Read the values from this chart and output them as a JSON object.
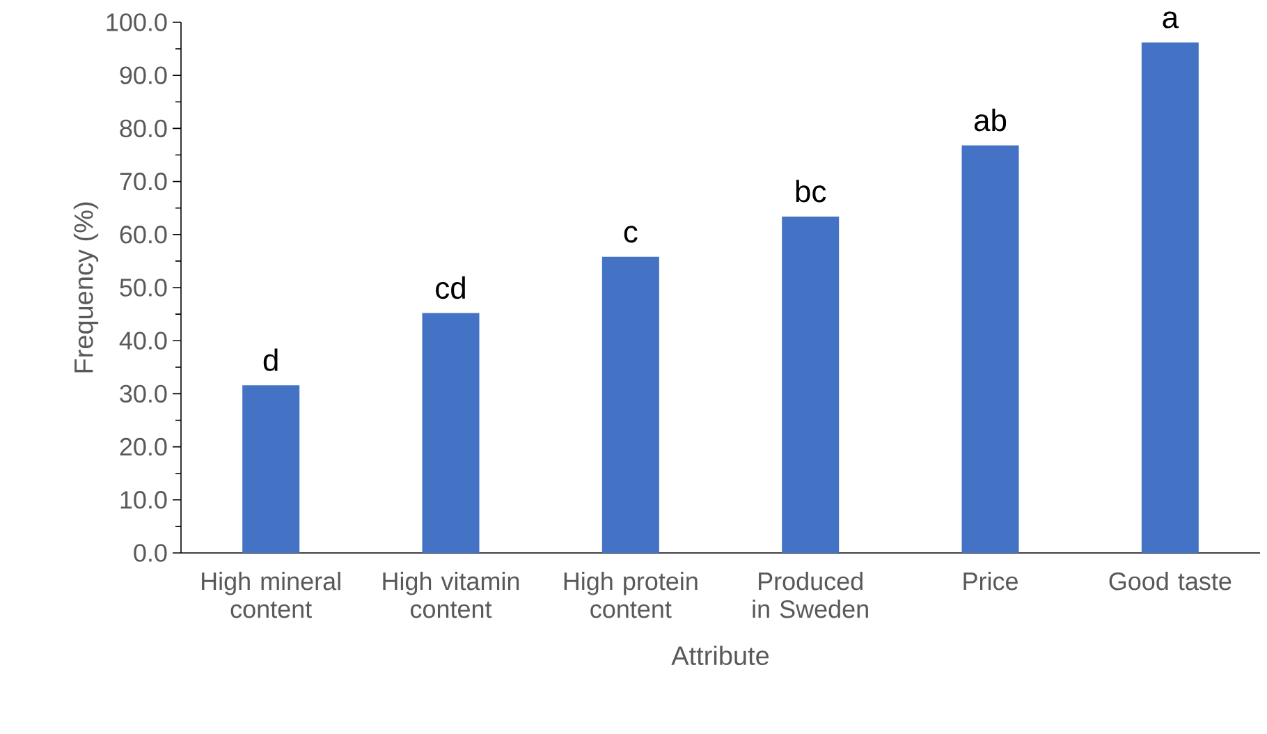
{
  "chart_data": {
    "type": "bar",
    "categories": [
      "High mineral content",
      "High vitamin content",
      "High protein content",
      "Produced in Sweden",
      "Price",
      "Good taste"
    ],
    "values": [
      31.6,
      45.2,
      55.8,
      63.4,
      76.8,
      96.2
    ],
    "color": "#4472c4",
    "xlabel": "Attribute",
    "ylabel": "Frequency (%)",
    "ylim": [
      0,
      100
    ],
    "yticks": [
      {
        "value": 0,
        "label": "0.0"
      },
      {
        "value": 10,
        "label": "10.0"
      },
      {
        "value": 20,
        "label": "20.0"
      },
      {
        "value": 30,
        "label": "30.0"
      },
      {
        "value": 40,
        "label": "40.0"
      },
      {
        "value": 50,
        "label": "50.0"
      },
      {
        "value": 60,
        "label": "60.0"
      },
      {
        "value": 70,
        "label": "70.0"
      },
      {
        "value": 80,
        "label": "80.0"
      },
      {
        "value": 90,
        "label": "90.0"
      },
      {
        "value": 100,
        "label": "100.0"
      }
    ],
    "annotations": [
      {
        "text": "d",
        "x": "High mineral content",
        "y": 31.6
      },
      {
        "text": "cd",
        "x": "High vitamin content",
        "y": 45.2
      },
      {
        "text": "c",
        "x": "High protein content",
        "y": 55.8
      },
      {
        "text": "bc",
        "x": "Produced in Sweden",
        "y": 63.4
      },
      {
        "text": "ab",
        "x": "Price",
        "y": 76.8
      },
      {
        "text": "a",
        "x": "Good taste",
        "y": 96.2
      }
    ],
    "grid": false
  }
}
